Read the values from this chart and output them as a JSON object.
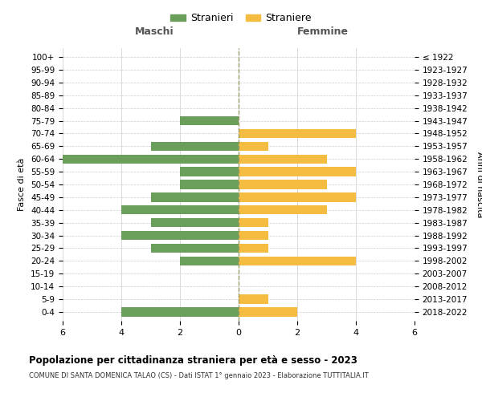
{
  "age_groups": [
    "0-4",
    "5-9",
    "10-14",
    "15-19",
    "20-24",
    "25-29",
    "30-34",
    "35-39",
    "40-44",
    "45-49",
    "50-54",
    "55-59",
    "60-64",
    "65-69",
    "70-74",
    "75-79",
    "80-84",
    "85-89",
    "90-94",
    "95-99",
    "100+"
  ],
  "birth_years": [
    "2018-2022",
    "2013-2017",
    "2008-2012",
    "2003-2007",
    "1998-2002",
    "1993-1997",
    "1988-1992",
    "1983-1987",
    "1978-1982",
    "1973-1977",
    "1968-1972",
    "1963-1967",
    "1958-1962",
    "1953-1957",
    "1948-1952",
    "1943-1947",
    "1938-1942",
    "1933-1937",
    "1928-1932",
    "1923-1927",
    "≤ 1922"
  ],
  "maschi": [
    4,
    0,
    0,
    0,
    2,
    3,
    4,
    3,
    4,
    3,
    2,
    2,
    6,
    3,
    0,
    2,
    0,
    0,
    0,
    0,
    0
  ],
  "femmine": [
    2,
    1,
    0,
    0,
    4,
    1,
    1,
    1,
    3,
    4,
    3,
    4,
    3,
    1,
    4,
    0,
    0,
    0,
    0,
    0,
    0
  ],
  "color_maschi": "#6a9e5b",
  "color_femmine": "#f5bc42",
  "legend_maschi": "Stranieri",
  "legend_femmine": "Straniere",
  "title_main": "Popolazione per cittadinanza straniera per età e sesso - 2023",
  "title_sub": "COMUNE DI SANTA DOMENICA TALAO (CS) - Dati ISTAT 1° gennaio 2023 - Elaborazione TUTTITALIA.IT",
  "label_left": "Maschi",
  "label_right": "Femmine",
  "ylabel_left": "Fasce di età",
  "ylabel_right": "Anni di nascita",
  "xlim": 6,
  "background_color": "#ffffff",
  "grid_color": "#cccccc",
  "dashed_line_color": "#999966"
}
